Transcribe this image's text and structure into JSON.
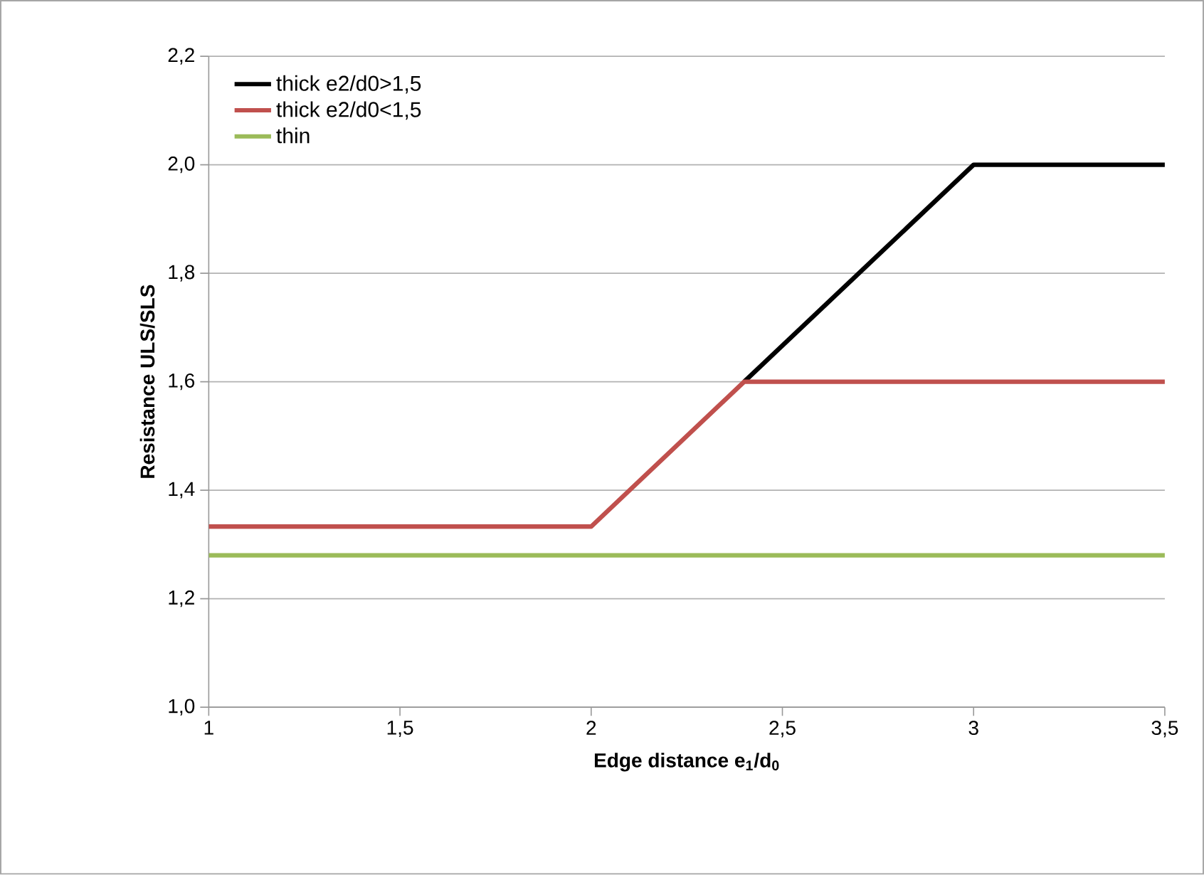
{
  "chart_data": {
    "type": "line",
    "xlabel": "Edge distance e$_{1}$/d$_{0}$",
    "ylabel": "Resistance ULS/SLS",
    "series": [
      {
        "name": "thick e2/d0>1,5",
        "color": "#000000",
        "x": [
          2.4,
          3,
          3.5
        ],
        "values": [
          1.6,
          2.0,
          2.0
        ]
      },
      {
        "name": "thick e2/d0<1,5",
        "color": "#c0504d",
        "x": [
          1,
          2,
          2.4,
          3.5
        ],
        "values": [
          1.333,
          1.333,
          1.6,
          1.6
        ]
      },
      {
        "name": "thin",
        "color": "#9bbb59",
        "x": [
          1,
          3.5
        ],
        "values": [
          1.28,
          1.28
        ]
      }
    ],
    "xlim": [
      1,
      3.5
    ],
    "ylim": [
      1.0,
      2.2
    ],
    "xticks": [
      1,
      {
        "value": 1.5,
        "label": "1,5"
      },
      2,
      {
        "value": 2.5,
        "label": "2,5"
      },
      3,
      {
        "value": 3.5,
        "label": "3,5"
      }
    ],
    "yticks": [
      {
        "value": 1.0,
        "label": "1,0"
      },
      {
        "value": 1.2,
        "label": "1,2"
      },
      {
        "value": 1.4,
        "label": "1,4"
      },
      {
        "value": 1.6,
        "label": "1,6"
      },
      {
        "value": 1.8,
        "label": "1,8"
      },
      {
        "value": 2.0,
        "label": "2,0"
      },
      {
        "value": 2.2,
        "label": "2,2"
      }
    ],
    "grid": "y",
    "legend": "top left",
    "marker": "none",
    "line_style": "solid"
  }
}
